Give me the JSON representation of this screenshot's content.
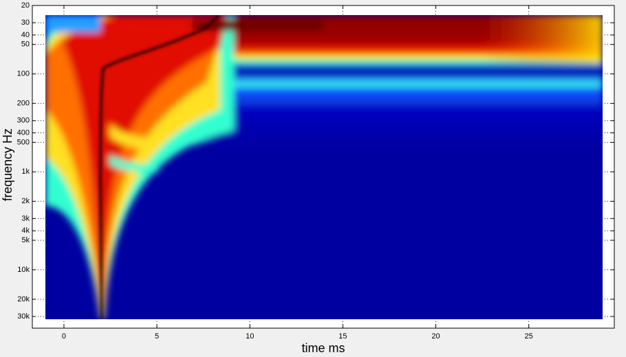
{
  "chart_data": {
    "type": "heatmap",
    "xlabel": "time   ms",
    "ylabel": "frequency   Hz",
    "xlim": [
      -1.7,
      29.6
    ],
    "xticks": [
      0,
      5,
      10,
      15,
      20,
      25
    ],
    "ylim": [
      20,
      39500
    ],
    "y_scale": "log",
    "y_reversed": true,
    "yticks": [
      20,
      30,
      40,
      50,
      100,
      200,
      300,
      400,
      500,
      {
        "value": 1000,
        "label": "1k"
      },
      {
        "value": 2000,
        "label": "2k"
      },
      {
        "value": 3000,
        "label": "3k"
      },
      {
        "value": 4000,
        "label": "4k"
      },
      {
        "value": 5000,
        "label": "5k"
      },
      {
        "value": 10000,
        "label": "10k"
      },
      {
        "value": 20000,
        "label": "20k"
      },
      {
        "value": 30000,
        "label": "30k"
      }
    ],
    "grid": true
  }
}
